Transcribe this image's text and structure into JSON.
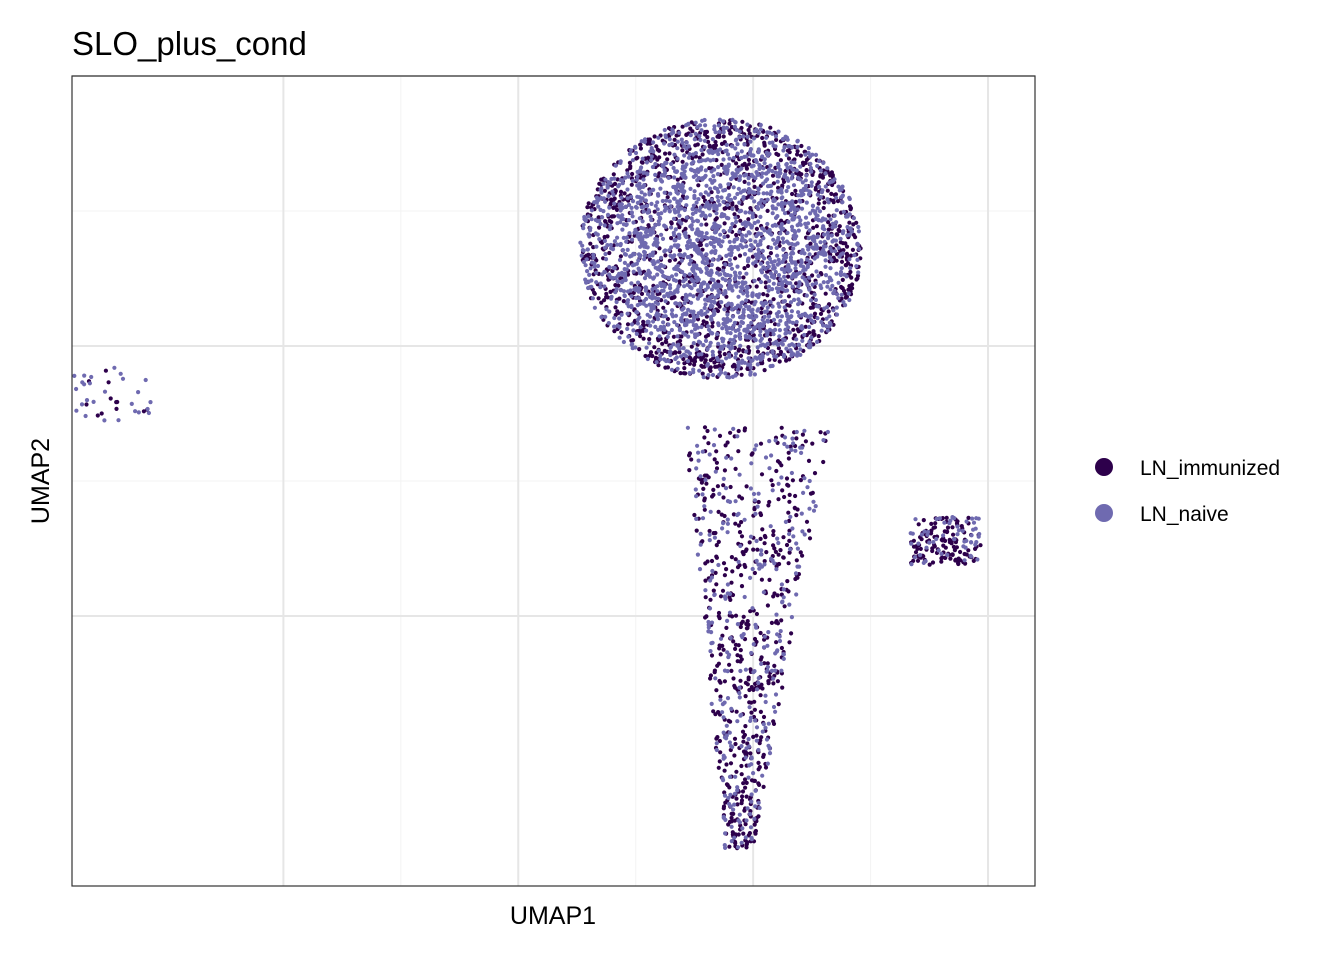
{
  "chart_data": {
    "type": "scatter",
    "title": "SLO_plus_cond",
    "xlabel": "UMAP1",
    "ylabel": "UMAP2",
    "tick_labels_shown": false,
    "grid": true,
    "legend_placement": "right",
    "series": [
      {
        "name": "LN_immunized",
        "color": "#2d004b"
      },
      {
        "name": "LN_naive",
        "color": "#6f6ab0"
      }
    ],
    "xlim": [
      -14.5,
      6.0
    ],
    "ylim": [
      -10.0,
      5.0
    ],
    "major_grid_x": [
      -10,
      -5,
      0,
      5
    ],
    "major_grid_y": [
      -5,
      0,
      5
    ],
    "clusters": [
      {
        "id": "main-body",
        "n": 3400,
        "center": [
          -0.7,
          1.8
        ],
        "radius": [
          3.0,
          2.4
        ],
        "immunized_share": 0.38
      },
      {
        "id": "tail",
        "n": 1000,
        "center": [
          0.2,
          -4.5
        ],
        "spread": [
          1.2,
          3.6
        ],
        "immunized_share": 0.62
      },
      {
        "id": "small-islet",
        "n": 40,
        "center": [
          -13.6,
          -0.9
        ],
        "spread": [
          0.9,
          0.5
        ],
        "immunized_share": 0.3
      }
    ]
  }
}
